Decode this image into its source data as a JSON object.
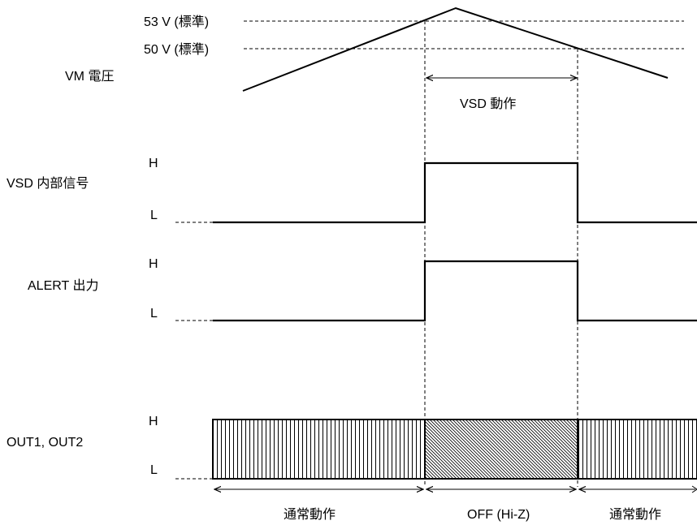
{
  "vm": {
    "label": "VM 電圧",
    "level_53": "53 V (標準)",
    "level_50": "50 V (標準)",
    "vsd_operation": "VSD 動作"
  },
  "vsd_signal": {
    "label": "VSD 内部信号",
    "high": "H",
    "low": "L"
  },
  "alert": {
    "label": "ALERT 出力",
    "high": "H",
    "low": "L"
  },
  "out": {
    "label": "OUT1, OUT2",
    "high": "H",
    "low": "L"
  },
  "phases": {
    "normal_left": "通常動作",
    "off": "OFF (Hi-Z)",
    "normal_right": "通常動作"
  }
}
